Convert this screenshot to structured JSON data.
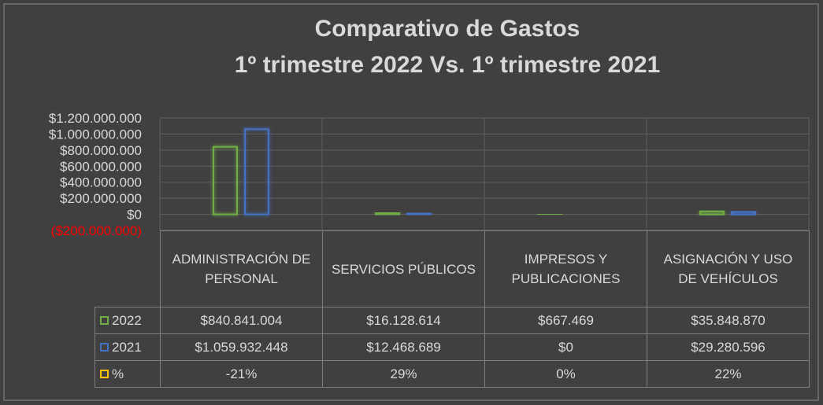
{
  "chart_data": {
    "type": "bar",
    "title": "Comparativo de Gastos",
    "subtitle": "1º trimestre 2022 Vs. 1º trimestre 2021",
    "categories": [
      "ADMINISTRACIÓN DE PERSONAL",
      "SERVICIOS PÚBLICOS",
      "IMPRESOS Y PUBLICACIONES",
      "ASIGNACIÓN Y USO DE VEHÍCULOS"
    ],
    "series": [
      {
        "name": "2022",
        "color": "#70ad47",
        "values": [
          840841004,
          16128614,
          667469,
          35848870
        ],
        "value_labels": [
          "$840.841.004",
          "$16.128.614",
          "$667.469",
          "$35.848.870"
        ]
      },
      {
        "name": "2021",
        "color": "#4472c4",
        "values": [
          1059932448,
          12468689,
          0,
          29280596
        ],
        "value_labels": [
          "$1.059.932.448",
          "$12.468.689",
          "$0",
          "$29.280.596"
        ]
      },
      {
        "name": "%",
        "color": "#ffc000",
        "values": [
          -21,
          29,
          0,
          22
        ],
        "value_labels": [
          "-21%",
          "29%",
          "0%",
          "22%"
        ],
        "axis": "y2"
      }
    ],
    "ylim": [
      -200000000,
      1200000000
    ],
    "yticks": [
      {
        "value": -200000000,
        "label": "($200.000.000)"
      },
      {
        "value": 0,
        "label": "$0"
      },
      {
        "value": 200000000,
        "label": "$200.000.000"
      },
      {
        "value": 400000000,
        "label": "$400.000.000"
      },
      {
        "value": 600000000,
        "label": "$600.000.000"
      },
      {
        "value": 800000000,
        "label": "$800.000.000"
      },
      {
        "value": 1000000000,
        "label": "$1.000.000.000"
      },
      {
        "value": 1200000000,
        "label": "$1.200.000.000"
      }
    ],
    "negative_color": "#ff0000",
    "grid": true
  }
}
